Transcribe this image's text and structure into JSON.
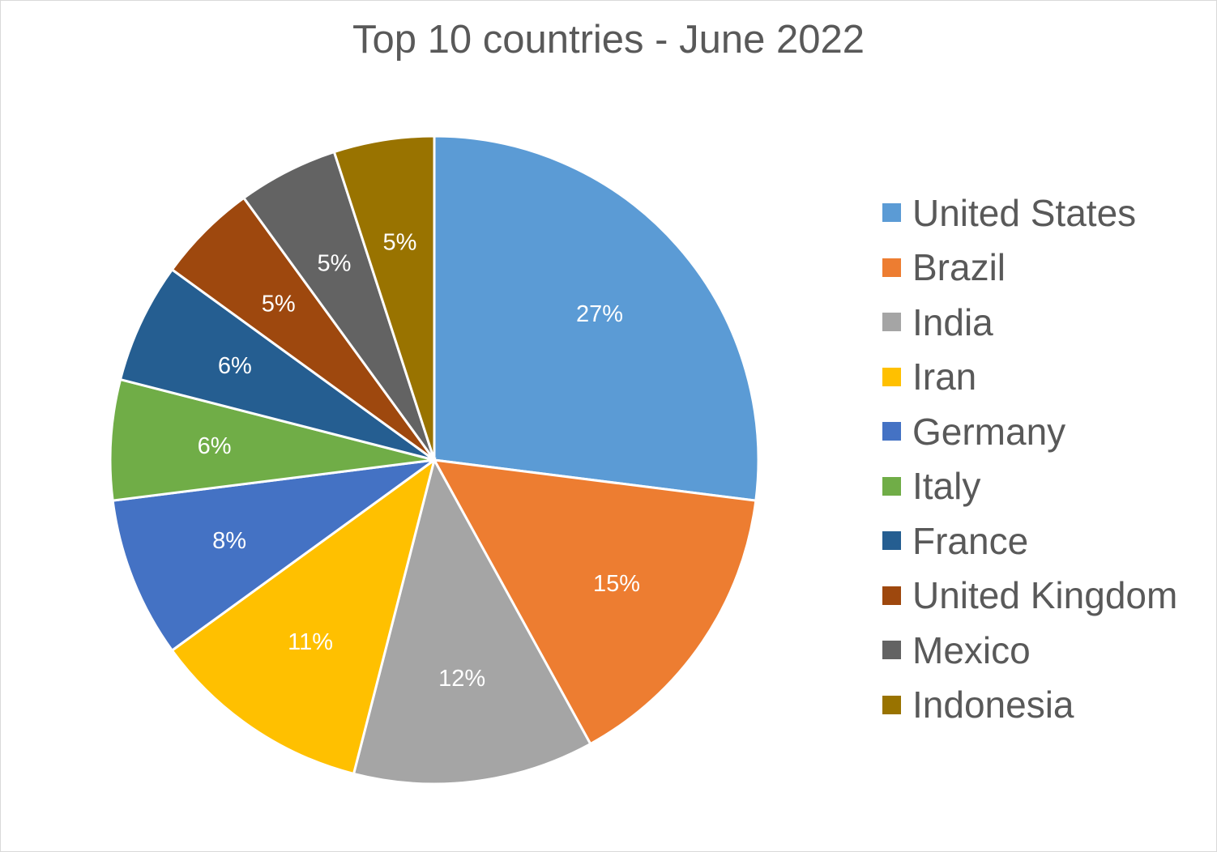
{
  "chart_data": {
    "type": "pie",
    "title": "Top 10 countries - June 2022",
    "legend_position": "right",
    "categories": [
      "United States",
      "Brazil",
      "India",
      "Iran",
      "Germany",
      "Italy",
      "France",
      "United Kingdom",
      "Mexico",
      "Indonesia"
    ],
    "values": [
      27,
      15,
      12,
      11,
      8,
      6,
      6,
      5,
      5,
      5
    ],
    "labels": [
      "27%",
      "15%",
      "12%",
      "11%",
      "8%",
      "6%",
      "6%",
      "5%",
      "5%",
      "5%"
    ],
    "colors": [
      "#5B9BD5",
      "#ED7D31",
      "#A5A5A5",
      "#FFC000",
      "#4472C4",
      "#70AD47",
      "#255E91",
      "#9E480E",
      "#636363",
      "#997300"
    ]
  }
}
